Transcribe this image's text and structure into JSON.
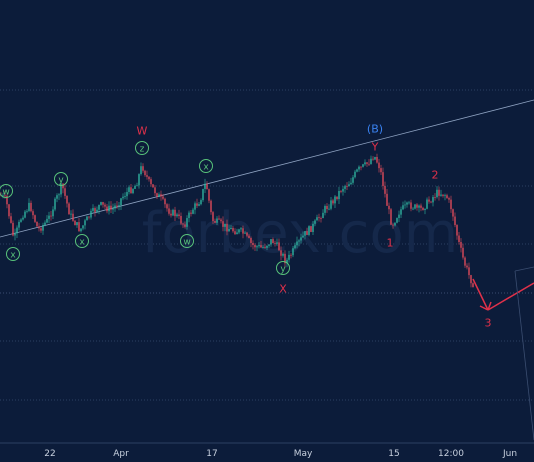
{
  "chart_data": {
    "type": "line",
    "title": "",
    "xlabel": "",
    "ylabel": "",
    "x_ticks": [
      "22",
      "Apr",
      "17",
      "May",
      "15",
      "12:00",
      "Jun"
    ],
    "watermark": "forbex.com",
    "grid": true,
    "colors": {
      "background": "#0c1c3a",
      "candle_up": "#2fb5a0",
      "candle_down": "#e04b5a",
      "label_red": "#e0314a",
      "label_blue": "#3a82f0",
      "label_green": "#58c27a",
      "trendline": "#8fa3c2",
      "gridline": "#2c3f62"
    },
    "wave_labels": [
      {
        "text": "w",
        "color": "green",
        "circled": true
      },
      {
        "text": "x",
        "color": "green",
        "circled": true
      },
      {
        "text": "y",
        "color": "green",
        "circled": true
      },
      {
        "text": "x",
        "color": "green",
        "circled": true
      },
      {
        "text": "z",
        "color": "green",
        "circled": true
      },
      {
        "text": "W",
        "color": "red",
        "circled": false
      },
      {
        "text": "w",
        "color": "green",
        "circled": true
      },
      {
        "text": "x",
        "color": "green",
        "circled": true
      },
      {
        "text": "y",
        "color": "green",
        "circled": true
      },
      {
        "text": "X",
        "color": "red",
        "circled": false
      },
      {
        "text": "(B)",
        "color": "blue",
        "circled": false
      },
      {
        "text": "Y",
        "color": "red",
        "circled": false
      },
      {
        "text": "1",
        "color": "red",
        "circled": false
      },
      {
        "text": "2",
        "color": "red",
        "circled": false
      },
      {
        "text": "3",
        "color": "red",
        "circled": false
      }
    ]
  }
}
